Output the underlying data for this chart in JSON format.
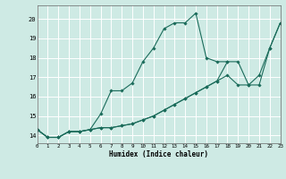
{
  "xlabel": "Humidex (Indice chaleur)",
  "ylabel": "",
  "bg_color": "#ceeae4",
  "grid_color": "#ffffff",
  "line_color": "#1a6b5a",
  "xlim": [
    0,
    23
  ],
  "ylim": [
    13.6,
    20.7
  ],
  "xticks": [
    0,
    1,
    2,
    3,
    4,
    5,
    6,
    7,
    8,
    9,
    10,
    11,
    12,
    13,
    14,
    15,
    16,
    17,
    18,
    19,
    20,
    21,
    22,
    23
  ],
  "yticks": [
    14,
    15,
    16,
    17,
    18,
    19,
    20
  ],
  "series": [
    [
      14.3,
      13.9,
      13.9,
      14.2,
      14.2,
      14.3,
      15.1,
      16.3,
      16.3,
      16.7,
      17.8,
      18.5,
      19.5,
      19.8,
      19.8,
      20.3,
      18.0,
      17.8,
      17.8,
      null,
      null,
      null,
      null,
      null
    ],
    [
      14.3,
      13.9,
      13.9,
      14.2,
      14.2,
      14.3,
      14.4,
      14.4,
      14.5,
      14.6,
      14.8,
      15.0,
      15.3,
      15.6,
      15.9,
      16.2,
      16.5,
      16.8,
      17.8,
      17.8,
      16.6,
      17.1,
      18.5,
      19.8
    ],
    [
      14.3,
      13.9,
      13.9,
      14.2,
      14.2,
      14.3,
      14.4,
      14.4,
      14.5,
      14.6,
      14.8,
      15.0,
      15.3,
      15.6,
      15.9,
      16.2,
      16.5,
      16.8,
      17.1,
      16.6,
      16.6,
      16.6,
      18.5,
      19.8
    ]
  ]
}
